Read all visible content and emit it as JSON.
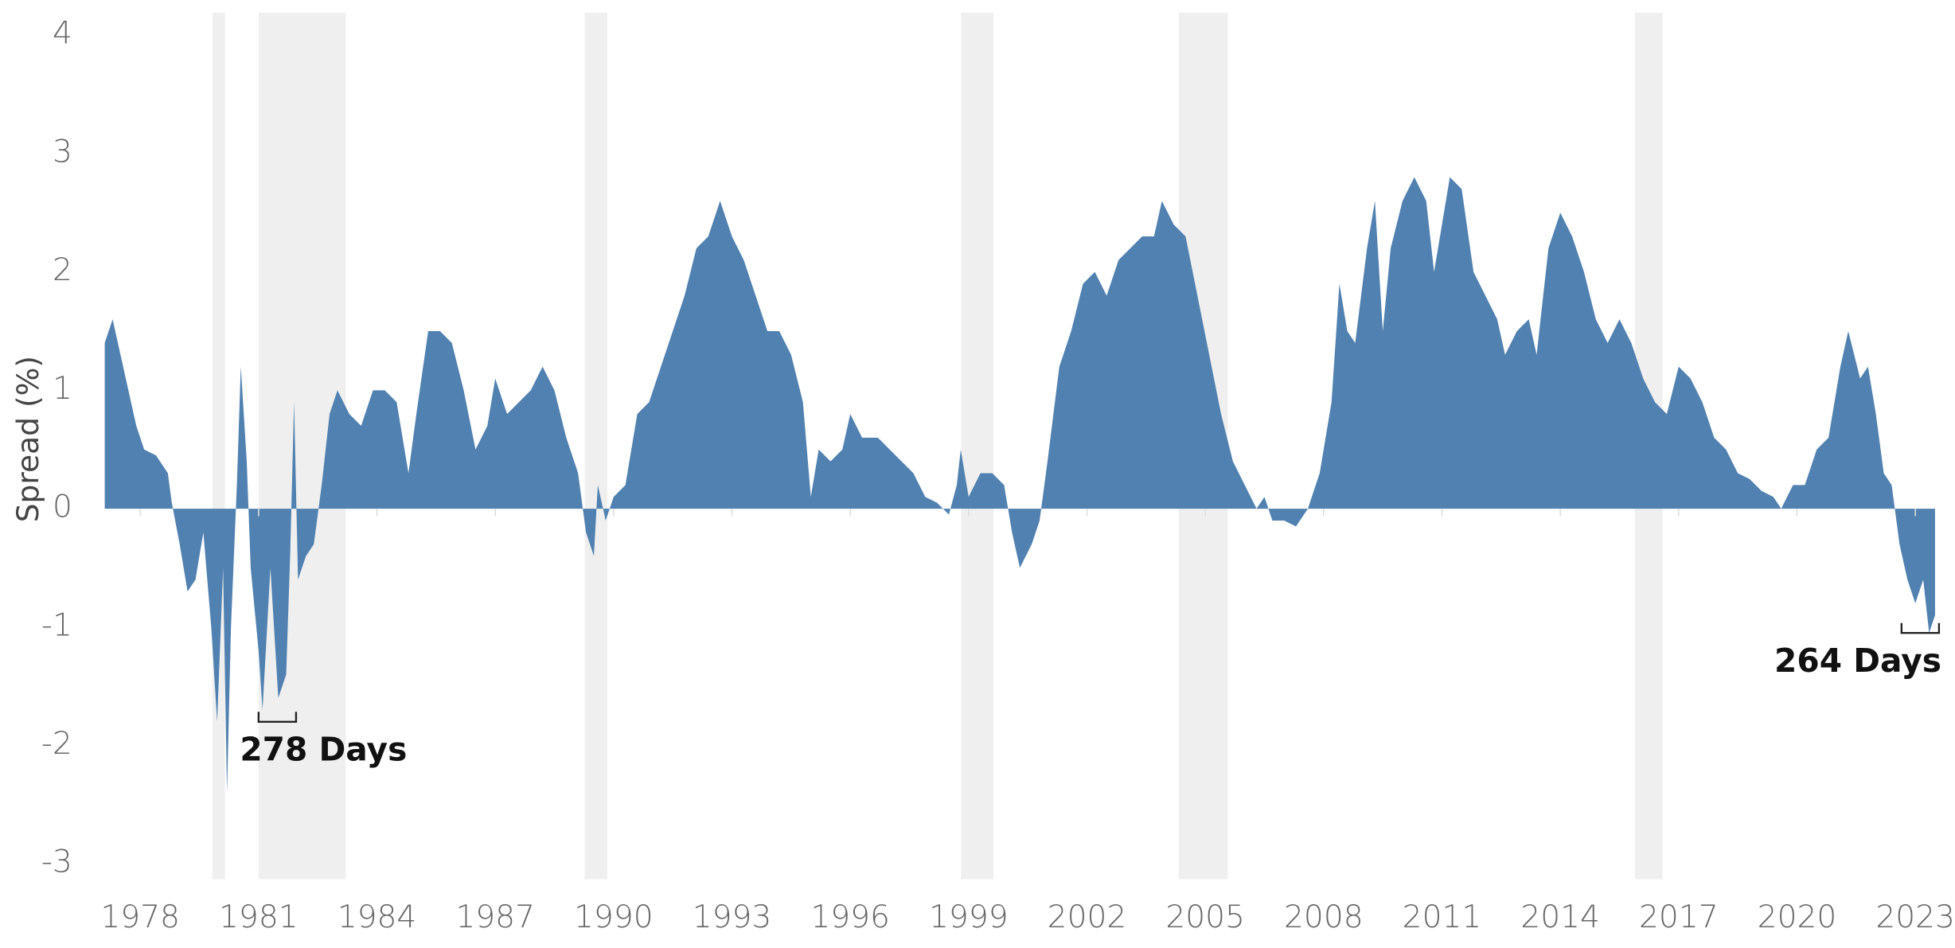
{
  "chart_data": {
    "type": "area",
    "y_label": "Spread (%)",
    "color": "#5081b0",
    "band_color": "#efefef",
    "xlim": [
      1977.1,
      2023.5
    ],
    "ylim": [
      -3.13,
      4.19
    ],
    "xticks": [
      1978,
      1981,
      1984,
      1987,
      1990,
      1993,
      1996,
      1999,
      2002,
      2005,
      2008,
      2011,
      2014,
      2017,
      2020,
      2023
    ],
    "yticks": [
      -3,
      -2,
      -1,
      0,
      1,
      2,
      3,
      4
    ],
    "bands": [
      [
        1979.83,
        1980.15
      ],
      [
        1981.0,
        1983.21
      ],
      [
        1989.27,
        1989.84
      ],
      [
        1998.81,
        1999.63
      ],
      [
        2004.33,
        2005.57
      ],
      [
        2015.89,
        2016.59
      ]
    ],
    "annotations": [
      {
        "text": "278 Days",
        "x": [
          1981.0,
          1981.95
        ],
        "y": -1.8
      },
      {
        "text": "264 Days",
        "x": [
          2022.65,
          2023.6
        ],
        "y": -1.05
      }
    ],
    "x": [
      1977.1,
      1977.3,
      1977.5,
      1977.7,
      1977.9,
      1978.1,
      1978.4,
      1978.7,
      1978.8,
      1979.0,
      1979.2,
      1979.4,
      1979.6,
      1979.8,
      1979.95,
      1980.1,
      1980.2,
      1980.3,
      1980.45,
      1980.55,
      1980.7,
      1980.8,
      1981.0,
      1981.1,
      1981.3,
      1981.5,
      1981.7,
      1981.8,
      1981.9,
      1982.0,
      1982.2,
      1982.4,
      1982.6,
      1982.8,
      1983.0,
      1983.3,
      1983.6,
      1983.9,
      1984.2,
      1984.5,
      1984.8,
      1985.0,
      1985.3,
      1985.6,
      1985.9,
      1986.2,
      1986.5,
      1986.8,
      1987.0,
      1987.3,
      1987.6,
      1987.9,
      1988.2,
      1988.5,
      1988.8,
      1989.1,
      1989.3,
      1989.5,
      1989.6,
      1989.8,
      1990.0,
      1990.3,
      1990.6,
      1990.9,
      1991.2,
      1991.5,
      1991.8,
      1992.1,
      1992.4,
      1992.7,
      1993.0,
      1993.3,
      1993.6,
      1993.9,
      1994.2,
      1994.5,
      1994.8,
      1995.0,
      1995.2,
      1995.5,
      1995.8,
      1996.0,
      1996.3,
      1996.7,
      1997.0,
      1997.3,
      1997.6,
      1997.9,
      1998.2,
      1998.5,
      1998.7,
      1998.8,
      1999.0,
      1999.3,
      1999.6,
      1999.9,
      2000.1,
      2000.3,
      2000.6,
      2000.8,
      2001.0,
      2001.3,
      2001.6,
      2001.9,
      2002.2,
      2002.5,
      2002.8,
      2003.1,
      2003.4,
      2003.7,
      2003.9,
      2004.2,
      2004.5,
      2004.8,
      2005.1,
      2005.4,
      2005.7,
      2006.0,
      2006.3,
      2006.5,
      2006.7,
      2007.0,
      2007.3,
      2007.6,
      2007.9,
      2008.2,
      2008.4,
      2008.6,
      2008.8,
      2009.1,
      2009.3,
      2009.5,
      2009.7,
      2010.0,
      2010.3,
      2010.6,
      2010.8,
      2011.0,
      2011.2,
      2011.5,
      2011.8,
      2012.1,
      2012.4,
      2012.6,
      2012.9,
      2013.2,
      2013.4,
      2013.7,
      2014.0,
      2014.3,
      2014.6,
      2014.9,
      2015.2,
      2015.5,
      2015.8,
      2016.1,
      2016.4,
      2016.7,
      2017.0,
      2017.3,
      2017.6,
      2017.9,
      2018.2,
      2018.5,
      2018.8,
      2019.1,
      2019.4,
      2019.6,
      2019.9,
      2020.2,
      2020.5,
      2020.8,
      2021.1,
      2021.3,
      2021.6,
      2021.8,
      2022.0,
      2022.2,
      2022.4,
      2022.6,
      2022.8,
      2023.0,
      2023.2,
      2023.35,
      2023.5
    ],
    "values": [
      1.4,
      1.6,
      1.3,
      1.0,
      0.7,
      0.5,
      0.45,
      0.3,
      0.05,
      -0.3,
      -0.7,
      -0.6,
      -0.2,
      -1.0,
      -1.8,
      -0.5,
      -2.4,
      -1.0,
      0.2,
      1.2,
      0.4,
      -0.5,
      -1.2,
      -1.7,
      -0.5,
      -1.6,
      -1.4,
      -0.4,
      0.9,
      -0.6,
      -0.4,
      -0.3,
      0.2,
      0.8,
      1.0,
      0.8,
      0.7,
      1.0,
      1.0,
      0.9,
      0.3,
      0.8,
      1.5,
      1.5,
      1.4,
      1.0,
      0.5,
      0.7,
      1.1,
      0.8,
      0.9,
      1.0,
      1.2,
      1.0,
      0.6,
      0.3,
      -0.2,
      -0.4,
      0.2,
      -0.1,
      0.1,
      0.2,
      0.8,
      0.9,
      1.2,
      1.5,
      1.8,
      2.2,
      2.3,
      2.6,
      2.3,
      2.1,
      1.8,
      1.5,
      1.5,
      1.3,
      0.9,
      0.1,
      0.5,
      0.4,
      0.5,
      0.8,
      0.6,
      0.6,
      0.5,
      0.4,
      0.3,
      0.1,
      0.05,
      -0.05,
      0.2,
      0.5,
      0.1,
      0.3,
      0.3,
      0.2,
      -0.2,
      -0.5,
      -0.3,
      -0.1,
      0.4,
      1.2,
      1.5,
      1.9,
      2.0,
      1.8,
      2.1,
      2.2,
      2.3,
      2.3,
      2.6,
      2.4,
      2.3,
      1.8,
      1.3,
      0.8,
      0.4,
      0.2,
      0.0,
      0.1,
      -0.1,
      -0.1,
      -0.15,
      0.0,
      0.3,
      0.9,
      1.9,
      1.5,
      1.4,
      2.2,
      2.6,
      1.5,
      2.2,
      2.6,
      2.8,
      2.6,
      2.0,
      2.4,
      2.8,
      2.7,
      2.0,
      1.8,
      1.6,
      1.3,
      1.5,
      1.6,
      1.3,
      2.2,
      2.5,
      2.3,
      2.0,
      1.6,
      1.4,
      1.6,
      1.4,
      1.1,
      0.9,
      0.8,
      1.2,
      1.1,
      0.9,
      0.6,
      0.5,
      0.3,
      0.25,
      0.15,
      0.1,
      0.0,
      0.2,
      0.2,
      0.5,
      0.6,
      1.2,
      1.5,
      1.1,
      1.2,
      0.8,
      0.3,
      0.2,
      -0.3,
      -0.6,
      -0.8,
      -0.6,
      -1.05,
      -0.9
    ]
  }
}
